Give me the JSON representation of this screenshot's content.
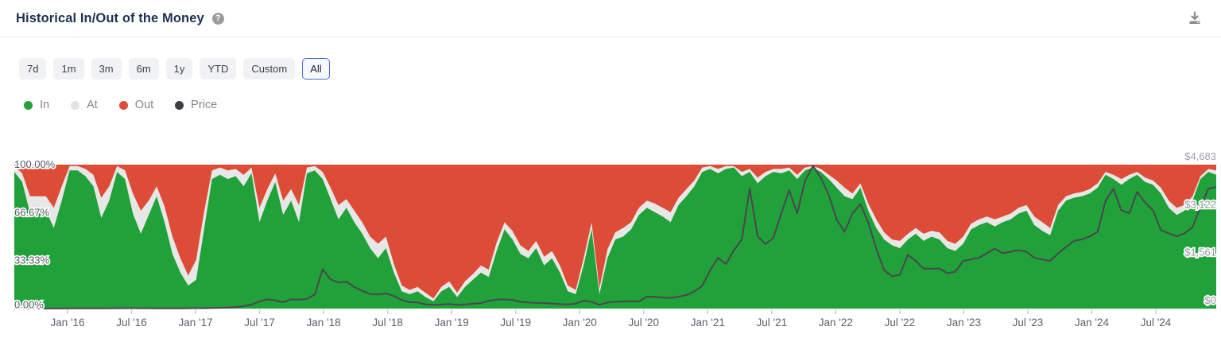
{
  "header": {
    "title": "Historical In/Out of the Money",
    "help_glyph": "?"
  },
  "toolbar": {
    "ranges": [
      "7d",
      "1m",
      "3m",
      "6m",
      "1y",
      "YTD",
      "Custom",
      "All"
    ],
    "selected": "All"
  },
  "legend": [
    {
      "label": "In",
      "color": "#21a139"
    },
    {
      "label": "At",
      "color": "#e2e3e4"
    },
    {
      "label": "Out",
      "color": "#dd4c37"
    },
    {
      "label": "Price",
      "color": "#3d3d44"
    }
  ],
  "chart_data": {
    "type": "area",
    "title": "Historical In/Out of the Money",
    "stacked": true,
    "colors": {
      "in": "#21a139",
      "at": "#e7e7e7",
      "out": "#dd4c37",
      "price": "#4a4650",
      "tick": "#c7cfe8"
    },
    "x_range": [
      "Aug 2015",
      "Dec 2024"
    ],
    "x_tick_labels": [
      "Jan '16",
      "Jul '16",
      "Jan '17",
      "Jul '17",
      "Jan '18",
      "Jul '18",
      "Jan '19",
      "Jul '19",
      "Jan '20",
      "Jul '20",
      "Jan '21",
      "Jul '21",
      "Jan '22",
      "Jul '22",
      "Jan '23",
      "Jul '23",
      "Jan '24",
      "Jul '24"
    ],
    "y_left": {
      "labels": [
        "100.00%",
        "66.67%",
        "33.33%",
        "0.00%"
      ],
      "values": [
        100,
        66.67,
        33.33,
        0
      ],
      "min": 0,
      "max": 100
    },
    "y_right": {
      "labels": [
        "$4,683",
        "$3,122",
        "$1,561",
        "$0"
      ],
      "values": [
        4683,
        3122,
        1561,
        0
      ],
      "min": 0,
      "max": 4683
    },
    "series": {
      "in_pct": [
        95,
        88,
        66,
        70,
        68,
        56,
        75,
        96,
        96,
        92,
        85,
        63,
        75,
        95,
        90,
        66,
        52,
        65,
        78,
        60,
        38,
        25,
        16,
        20,
        55,
        90,
        93,
        90,
        92,
        85,
        94,
        60,
        75,
        88,
        65,
        75,
        60,
        94,
        96,
        90,
        76,
        62,
        70,
        60,
        52,
        42,
        35,
        42,
        25,
        12,
        10,
        12,
        8,
        5,
        12,
        15,
        8,
        15,
        20,
        25,
        22,
        40,
        55,
        48,
        38,
        35,
        42,
        30,
        35,
        25,
        12,
        10,
        30,
        55,
        10,
        35,
        48,
        50,
        55,
        65,
        70,
        67,
        64,
        60,
        72,
        78,
        85,
        95,
        97,
        94,
        97,
        98,
        92,
        95,
        87,
        92,
        95,
        94,
        96,
        90,
        96,
        98,
        95,
        90,
        84,
        78,
        76,
        84,
        68,
        56,
        48,
        44,
        42,
        48,
        52,
        47,
        50,
        48,
        42,
        40,
        45,
        55,
        58,
        60,
        57,
        60,
        62,
        66,
        68,
        58,
        54,
        51,
        68,
        75,
        77,
        78,
        80,
        84,
        93,
        90,
        86,
        90,
        93,
        88,
        86,
        80,
        70,
        65,
        68,
        75,
        90,
        95,
        93
      ],
      "at_pct": [
        4,
        6,
        12,
        8,
        10,
        14,
        10,
        3,
        3,
        5,
        8,
        14,
        10,
        4,
        6,
        14,
        16,
        10,
        7,
        11,
        12,
        10,
        7,
        14,
        12,
        6,
        5,
        6,
        5,
        8,
        4,
        10,
        8,
        6,
        10,
        8,
        12,
        4,
        3,
        5,
        8,
        10,
        6,
        8,
        8,
        8,
        10,
        8,
        6,
        4,
        3,
        3,
        3,
        2,
        3,
        4,
        3,
        4,
        4,
        5,
        5,
        6,
        5,
        6,
        6,
        5,
        5,
        6,
        5,
        5,
        4,
        3,
        5,
        5,
        4,
        6,
        5,
        6,
        5,
        5,
        5,
        6,
        6,
        7,
        5,
        5,
        4,
        3,
        2,
        3,
        2,
        1,
        3,
        2,
        4,
        3,
        2,
        3,
        2,
        3,
        2,
        1,
        2,
        3,
        5,
        6,
        4,
        3,
        5,
        6,
        5,
        4,
        5,
        4,
        4,
        5,
        4,
        5,
        5,
        5,
        5,
        4,
        4,
        4,
        5,
        4,
        4,
        4,
        4,
        6,
        6,
        5,
        4,
        3,
        3,
        3,
        3,
        3,
        2,
        3,
        4,
        3,
        2,
        3,
        3,
        4,
        5,
        5,
        4,
        3,
        2,
        2,
        3
      ],
      "price_usd": [
        2,
        2,
        2,
        2,
        3,
        3,
        3,
        4,
        5,
        6,
        8,
        9,
        10,
        11,
        12,
        12,
        11,
        10,
        9,
        8,
        8,
        9,
        10,
        12,
        14,
        18,
        22,
        35,
        50,
        80,
        130,
        230,
        300,
        270,
        210,
        300,
        290,
        310,
        460,
        1280,
        950,
        840,
        880,
        700,
        580,
        470,
        460,
        490,
        410,
        280,
        210,
        200,
        140,
        120,
        130,
        150,
        125,
        135,
        160,
        175,
        250,
        290,
        300,
        280,
        220,
        200,
        185,
        180,
        165,
        145,
        135,
        160,
        255,
        220,
        125,
        200,
        220,
        230,
        240,
        235,
        390,
        380,
        360,
        350,
        385,
        440,
        560,
        740,
        1250,
        1650,
        1450,
        1900,
        2250,
        3900,
        2350,
        2100,
        2300,
        3100,
        3850,
        3100,
        4150,
        4650,
        4250,
        3700,
        2900,
        2500,
        3100,
        3400,
        2800,
        1950,
        1250,
        1050,
        1100,
        1750,
        1550,
        1300,
        1300,
        1300,
        1150,
        1200,
        1550,
        1600,
        1650,
        1800,
        1950,
        1800,
        1850,
        1900,
        1850,
        1650,
        1600,
        1550,
        1800,
        2000,
        2200,
        2250,
        2350,
        2500,
        3500,
        3900,
        3200,
        3100,
        3800,
        3450,
        3200,
        2550,
        2450,
        2350,
        2450,
        2650,
        3300,
        3900,
        3950
      ]
    }
  }
}
